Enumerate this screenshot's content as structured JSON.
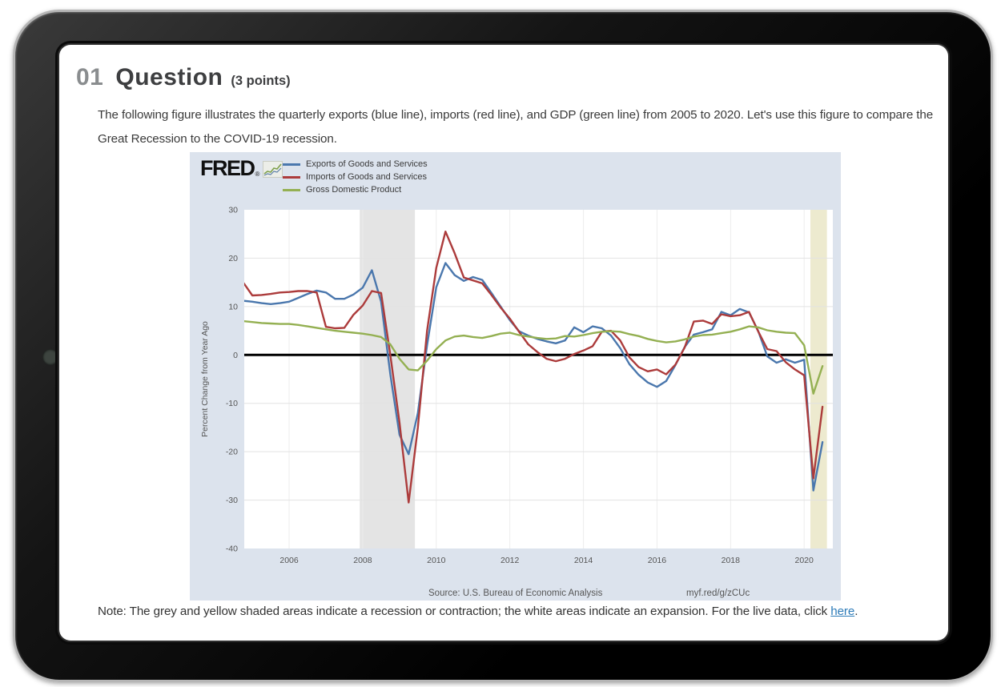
{
  "page": {
    "heading": {
      "number": "01",
      "title": "Question",
      "points": "(3 points)"
    },
    "paragraph": "The following figure illustrates the quarterly exports (blue line), imports (red line), and GDP (green line) from 2005 to 2020. Let's use this figure to compare the Great Recession to the COVID-19 recession.",
    "note": {
      "prefix": "Note: The grey and yellow shaded areas indicate a recession or contraction; the white areas indicate an expansion. For the live data, click ",
      "link_text": "here",
      "suffix": "."
    }
  },
  "chart": {
    "brand": "FRED",
    "brand_icon": "fred-sparkline-icon",
    "ylabel": "Percent Change from Year Ago",
    "source_text": "Source: U.S. Bureau of Economic Analysis",
    "short_url": "myf.red/g/zCUc",
    "panel_bg": "#dce3ed",
    "plot_bg": "#ffffff"
  },
  "chart_data": {
    "type": "line",
    "title": "",
    "xlabel": "",
    "ylabel": "Percent Change from Year Ago",
    "x_start": 2004.75,
    "x_step": 0.25,
    "xlim": [
      2004.78,
      2020.78
    ],
    "ylim": [
      -40,
      30
    ],
    "x_ticks": [
      2006,
      2008,
      2010,
      2012,
      2014,
      2016,
      2018,
      2020
    ],
    "y_ticks": [
      30,
      20,
      10,
      0,
      -10,
      -20,
      -30,
      -40
    ],
    "grid": true,
    "legend_position": "top-left",
    "zero_line_color": "#000000",
    "recession_bands": [
      {
        "from": 2007.92,
        "to": 2009.42,
        "color": "#e4e4e4",
        "label": "Great Recession"
      },
      {
        "from": 2020.17,
        "to": 2020.62,
        "color": "#edeacf",
        "label": "COVID-19 recession"
      }
    ],
    "series": [
      {
        "name": "Exports of Goods and Services",
        "color": "#4a77ad",
        "values": [
          11.2,
          11.0,
          10.7,
          10.5,
          10.7,
          11.0,
          11.8,
          12.6,
          13.3,
          12.9,
          11.6,
          11.6,
          12.5,
          13.9,
          17.5,
          11.0,
          -4.0,
          -16.5,
          -20.5,
          -12.0,
          2.0,
          14.0,
          19.0,
          16.5,
          15.3,
          16.1,
          15.5,
          12.8,
          10.0,
          7.2,
          4.9,
          4.0,
          3.3,
          2.8,
          2.4,
          3.0,
          5.7,
          4.7,
          5.9,
          5.5,
          4.0,
          1.4,
          -1.9,
          -4.1,
          -5.7,
          -6.6,
          -5.4,
          -2.1,
          1.6,
          4.2,
          4.7,
          5.3,
          8.9,
          8.2,
          9.5,
          8.8,
          5.0,
          -0.3,
          -1.6,
          -0.9,
          -1.6,
          -1.0,
          -28.0,
          -18.0
        ]
      },
      {
        "name": "Imports of Goods and Services",
        "color": "#ac3b3b",
        "values": [
          15.0,
          12.3,
          12.4,
          12.6,
          12.9,
          13.0,
          13.2,
          13.2,
          12.9,
          5.8,
          5.5,
          5.6,
          8.3,
          10.2,
          13.2,
          12.8,
          0.0,
          -14.0,
          -30.5,
          -15.0,
          5.0,
          18.0,
          25.5,
          21.0,
          16.0,
          15.4,
          14.8,
          12.4,
          9.8,
          7.5,
          4.8,
          2.2,
          0.6,
          -0.8,
          -1.3,
          -0.8,
          0.2,
          0.9,
          1.8,
          4.8,
          5.0,
          3.0,
          -0.5,
          -2.5,
          -3.4,
          -3.0,
          -4.0,
          -2.0,
          1.5,
          6.9,
          7.1,
          6.4,
          8.4,
          8.0,
          8.2,
          8.9,
          4.9,
          1.2,
          0.8,
          -1.5,
          -3.0,
          -4.2,
          -25.5,
          -10.7
        ]
      },
      {
        "name": "Gross Domestic Product",
        "color": "#94b052",
        "values": [
          7.0,
          6.8,
          6.6,
          6.5,
          6.4,
          6.4,
          6.2,
          5.9,
          5.6,
          5.3,
          5.0,
          4.8,
          4.6,
          4.4,
          4.1,
          3.7,
          2.2,
          -0.8,
          -3.0,
          -3.2,
          -1.2,
          1.2,
          3.0,
          3.8,
          4.0,
          3.7,
          3.5,
          3.9,
          4.4,
          4.6,
          4.1,
          3.8,
          3.5,
          3.3,
          3.4,
          3.9,
          3.8,
          4.1,
          4.5,
          4.8,
          4.9,
          4.8,
          4.3,
          3.9,
          3.3,
          2.9,
          2.6,
          2.8,
          3.2,
          3.8,
          4.1,
          4.2,
          4.5,
          4.8,
          5.3,
          5.9,
          5.7,
          5.1,
          4.8,
          4.6,
          4.5,
          2.0,
          -8.0,
          -2.3
        ]
      }
    ]
  }
}
